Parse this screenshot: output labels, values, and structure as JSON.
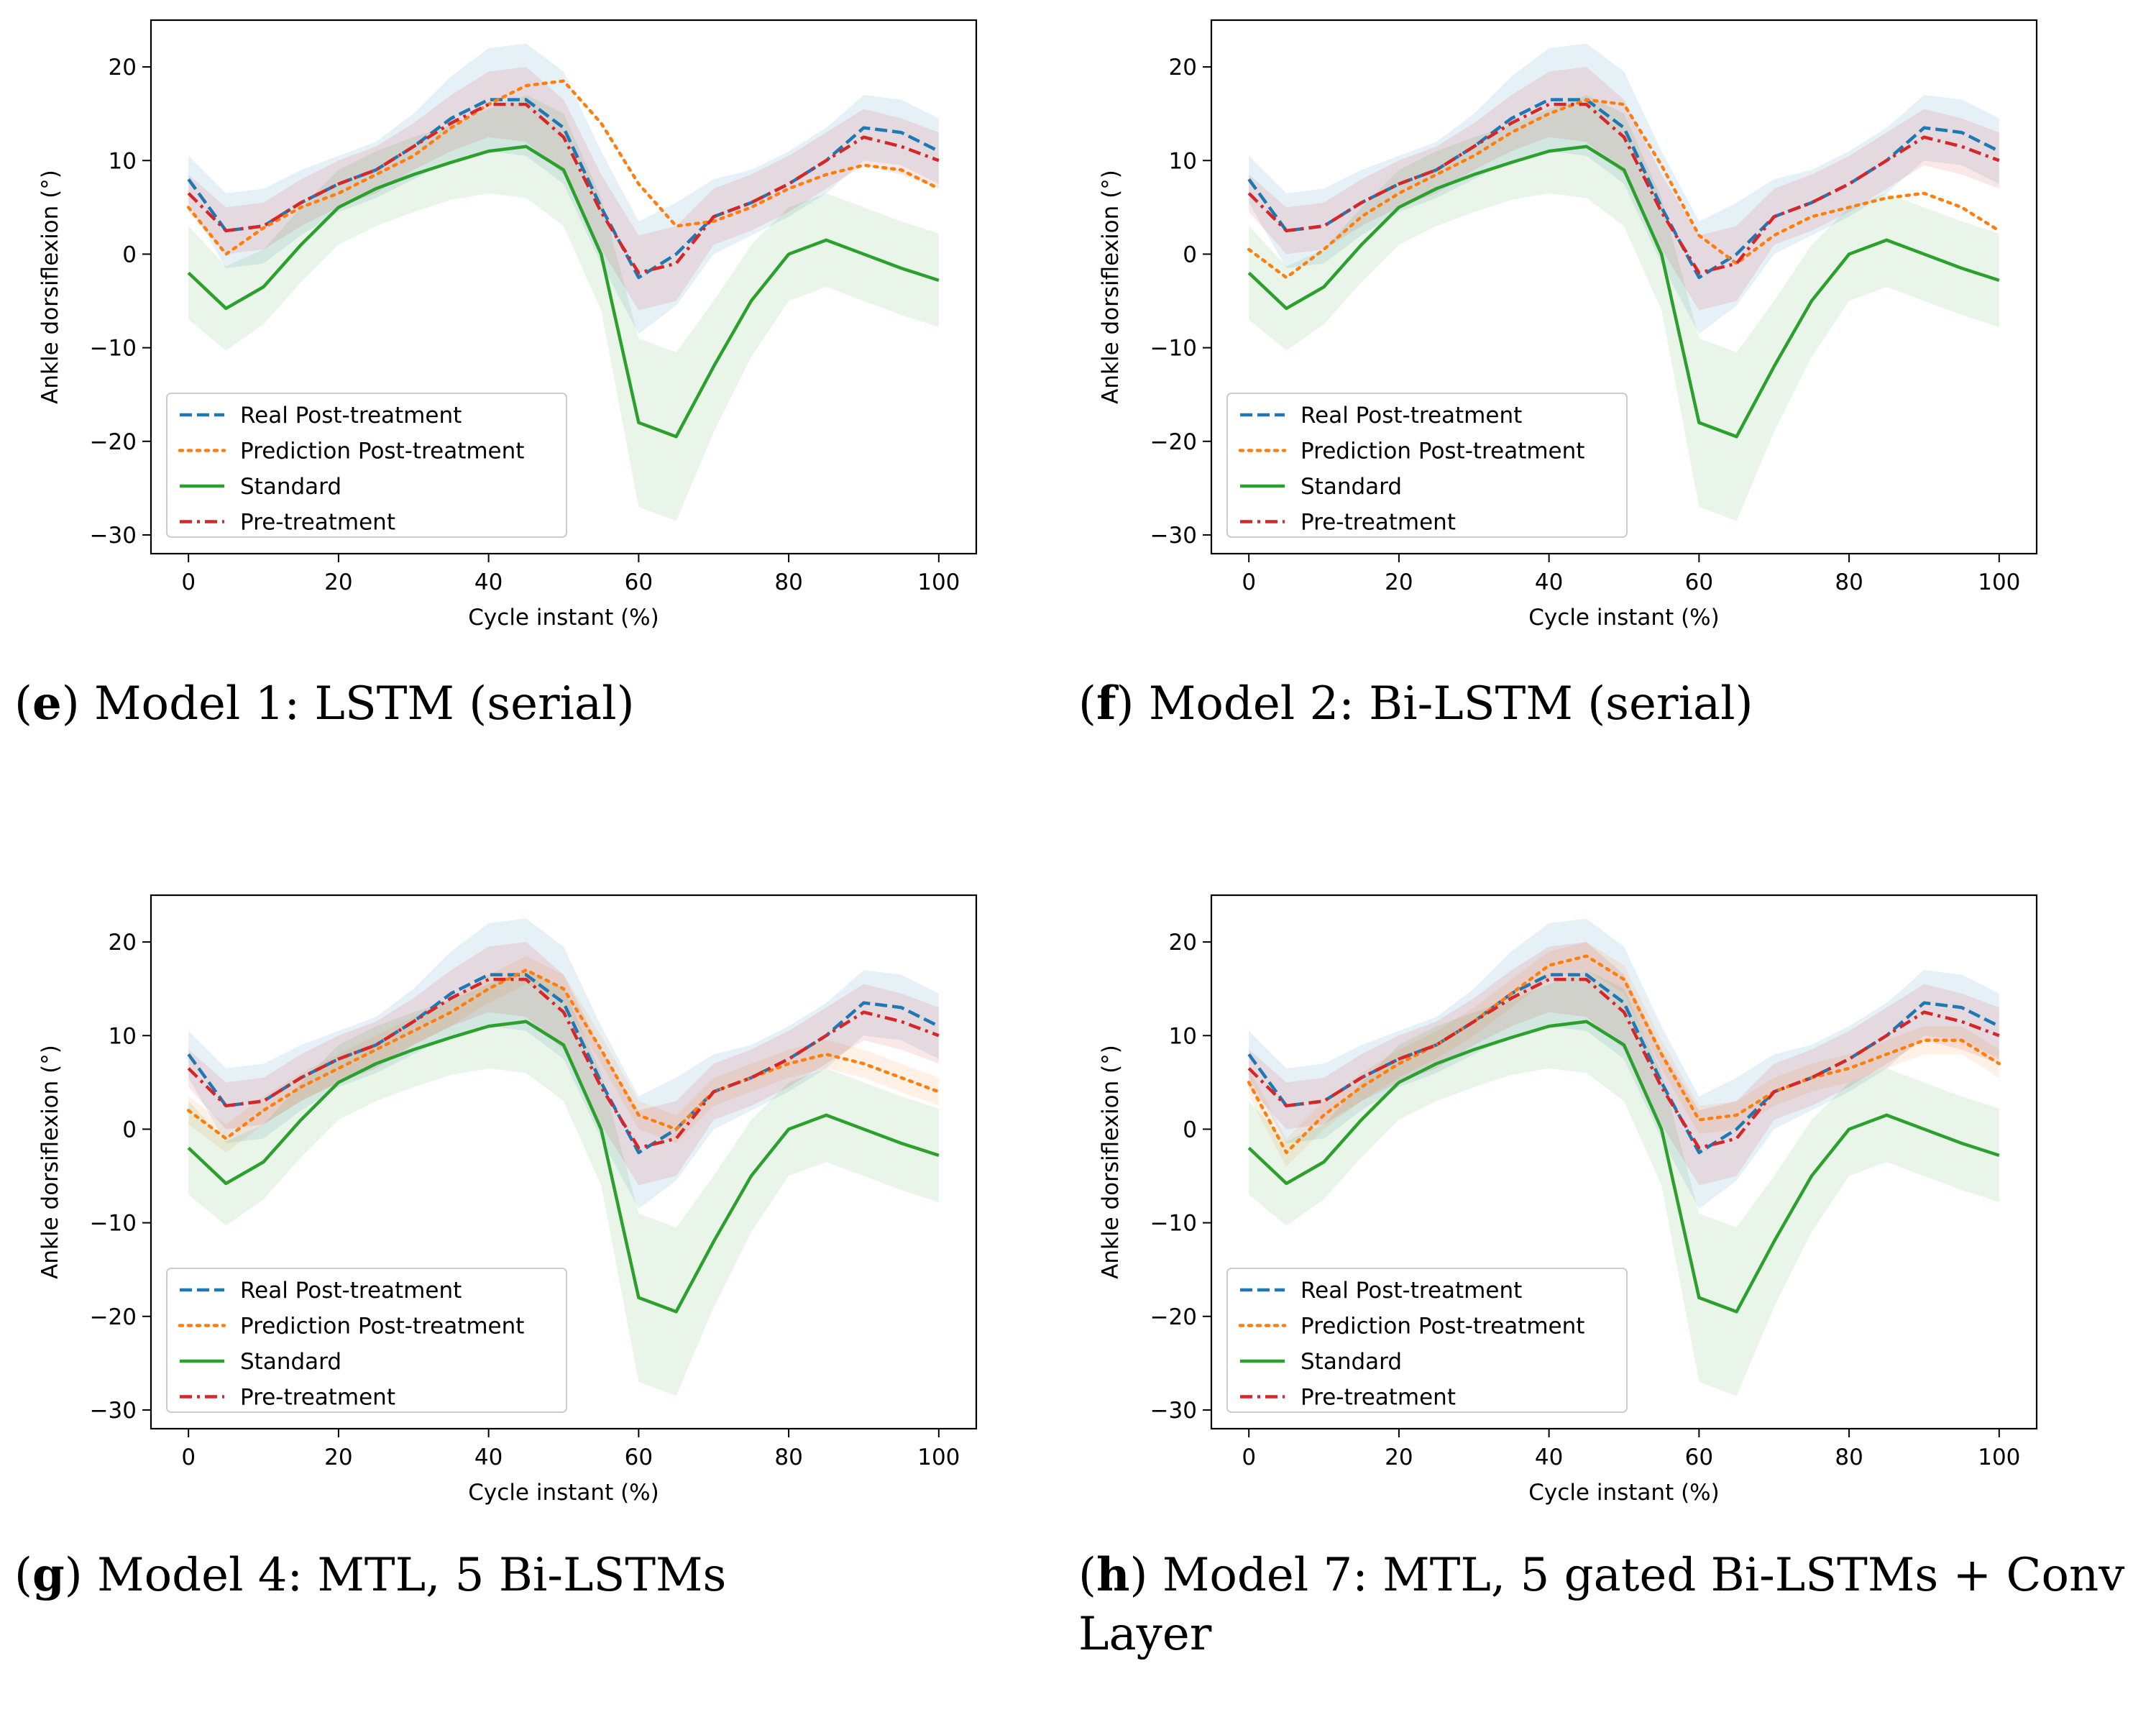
{
  "figure": {
    "legend_labels": [
      "Real Post-treatment",
      "Prediction Post-treatment",
      "Standard",
      "Pre-treatment"
    ],
    "series_colors": {
      "real": "#1f77b4",
      "prediction": "#ff7f0e",
      "standard": "#2ca02c",
      "pre": "#d62728"
    }
  },
  "chart_data": [
    {
      "type": "line",
      "panel_letter": "e",
      "caption": ") Model 1: LSTM (serial)",
      "title": "",
      "xlabel": "Cycle instant (%)",
      "ylabel": "Ankle dorsiflexion (°)",
      "xlim": [
        -5,
        105
      ],
      "ylim": [
        -32,
        25
      ],
      "xticks": [
        "0",
        "20",
        "40",
        "60",
        "80",
        "100"
      ],
      "yticks": [
        "−30",
        "−20",
        "−10",
        "0",
        "10",
        "20"
      ],
      "legend_position": "lower-left",
      "x": [
        0,
        5,
        10,
        15,
        20,
        25,
        30,
        35,
        40,
        45,
        50,
        55,
        60,
        65,
        70,
        75,
        80,
        85,
        90,
        95,
        100
      ],
      "series": [
        {
          "name": "Real Post-treatment",
          "style": "dashed",
          "color": "#1f77b4",
          "values": [
            8,
            2.5,
            3,
            5.5,
            7.5,
            9,
            11.5,
            14.5,
            16.5,
            16.5,
            13.5,
            5,
            -2.5,
            0,
            4,
            5.5,
            7.5,
            10,
            13.5,
            13,
            11
          ],
          "band": [
            2.5,
            4,
            4,
            3.5,
            3,
            3,
            3.5,
            4.5,
            5.5,
            6,
            6,
            6,
            6,
            5.5,
            4,
            3.5,
            3.5,
            3.5,
            3.5,
            3.5,
            3.5
          ]
        },
        {
          "name": "Prediction Post-treatment",
          "style": "dotted",
          "color": "#ff7f0e",
          "values": [
            5,
            0,
            2.8,
            5,
            6.5,
            8.5,
            10.5,
            13.5,
            16,
            18,
            18.5,
            14,
            7.5,
            3,
            3.5,
            5,
            7,
            8.5,
            9.5,
            9,
            7
          ],
          "band": null
        },
        {
          "name": "Standard",
          "style": "solid",
          "color": "#2ca02c",
          "values": [
            -2,
            -5.8,
            -3.5,
            1,
            5,
            7,
            8.5,
            9.8,
            11,
            11.5,
            9,
            0,
            -18,
            -19.5,
            -12,
            -5,
            0,
            1.5,
            0,
            -1.5,
            -2.8
          ],
          "band": [
            5,
            4.5,
            4,
            4,
            4,
            4,
            4,
            4,
            4.5,
            5.5,
            6,
            6,
            9,
            9,
            7,
            6,
            5,
            5,
            5,
            5,
            5
          ]
        },
        {
          "name": "Pre-treatment",
          "style": "dashdot",
          "color": "#d62728",
          "values": [
            6.5,
            2.5,
            3,
            5.5,
            7.5,
            9,
            11.5,
            14,
            16,
            16,
            12.5,
            4.5,
            -2,
            -1,
            4,
            5.5,
            7.5,
            10,
            12.5,
            11.5,
            10
          ],
          "band": [
            2,
            2.5,
            2.5,
            2.5,
            2.5,
            2.5,
            2.5,
            3,
            3.5,
            4,
            4,
            4,
            4,
            4,
            3,
            3,
            3,
            3,
            3,
            3,
            3
          ]
        }
      ]
    },
    {
      "type": "line",
      "panel_letter": "f",
      "caption": ") Model 2: Bi-LSTM (serial)",
      "title": "",
      "xlabel": "Cycle instant (%)",
      "ylabel": "Ankle dorsiflexion (°)",
      "xlim": [
        -5,
        105
      ],
      "ylim": [
        -32,
        25
      ],
      "xticks": [
        "0",
        "20",
        "40",
        "60",
        "80",
        "100"
      ],
      "yticks": [
        "−30",
        "−20",
        "−10",
        "0",
        "10",
        "20"
      ],
      "legend_position": "lower-left",
      "x": [
        0,
        5,
        10,
        15,
        20,
        25,
        30,
        35,
        40,
        45,
        50,
        55,
        60,
        65,
        70,
        75,
        80,
        85,
        90,
        95,
        100
      ],
      "series": [
        {
          "name": "Real Post-treatment",
          "style": "dashed",
          "color": "#1f77b4",
          "values": [
            8,
            2.5,
            3,
            5.5,
            7.5,
            9,
            11.5,
            14.5,
            16.5,
            16.5,
            13.5,
            5,
            -2.5,
            0,
            4,
            5.5,
            7.5,
            10,
            13.5,
            13,
            11
          ],
          "band": [
            2.5,
            4,
            4,
            3.5,
            3,
            3,
            3.5,
            4.5,
            5.5,
            6,
            6,
            6,
            6,
            5.5,
            4,
            3.5,
            3.5,
            3.5,
            3.5,
            3.5,
            3.5
          ]
        },
        {
          "name": "Prediction Post-treatment",
          "style": "dotted",
          "color": "#ff7f0e",
          "values": [
            0.5,
            -2.5,
            0.5,
            4,
            6.5,
            8.5,
            10.5,
            13,
            15,
            16.5,
            16,
            9.5,
            2,
            -1,
            2,
            4,
            5,
            6,
            6.5,
            5,
            2.5
          ],
          "band": null
        },
        {
          "name": "Standard",
          "style": "solid",
          "color": "#2ca02c",
          "values": [
            -2,
            -5.8,
            -3.5,
            1,
            5,
            7,
            8.5,
            9.8,
            11,
            11.5,
            9,
            0,
            -18,
            -19.5,
            -12,
            -5,
            0,
            1.5,
            0,
            -1.5,
            -2.8
          ],
          "band": [
            5,
            4.5,
            4,
            4,
            4,
            4,
            4,
            4,
            4.5,
            5.5,
            6,
            6,
            9,
            9,
            7,
            6,
            5,
            5,
            5,
            5,
            5
          ]
        },
        {
          "name": "Pre-treatment",
          "style": "dashdot",
          "color": "#d62728",
          "values": [
            6.5,
            2.5,
            3,
            5.5,
            7.5,
            9,
            11.5,
            14,
            16,
            16,
            12.5,
            4.5,
            -2,
            -1,
            4,
            5.5,
            7.5,
            10,
            12.5,
            11.5,
            10
          ],
          "band": [
            2,
            2.5,
            2.5,
            2.5,
            2.5,
            2.5,
            2.5,
            3,
            3.5,
            4,
            4,
            4,
            4,
            4,
            3,
            3,
            3,
            3,
            3,
            3,
            3
          ]
        }
      ]
    },
    {
      "type": "line",
      "panel_letter": "g",
      "caption": ") Model 4: MTL, 5 Bi-LSTMs",
      "title": "",
      "xlabel": "Cycle instant (%)",
      "ylabel": "Ankle dorsiflexion (°)",
      "xlim": [
        -5,
        105
      ],
      "ylim": [
        -32,
        25
      ],
      "xticks": [
        "0",
        "20",
        "40",
        "60",
        "80",
        "100"
      ],
      "yticks": [
        "−30",
        "−20",
        "−10",
        "0",
        "10",
        "20"
      ],
      "legend_position": "lower-left",
      "x": [
        0,
        5,
        10,
        15,
        20,
        25,
        30,
        35,
        40,
        45,
        50,
        55,
        60,
        65,
        70,
        75,
        80,
        85,
        90,
        95,
        100
      ],
      "series": [
        {
          "name": "Real Post-treatment",
          "style": "dashed",
          "color": "#1f77b4",
          "values": [
            8,
            2.5,
            3,
            5.5,
            7.5,
            9,
            11.5,
            14.5,
            16.5,
            16.5,
            13.5,
            5,
            -2.5,
            0,
            4,
            5.5,
            7.5,
            10,
            13.5,
            13,
            11
          ],
          "band": [
            2.5,
            4,
            4,
            3.5,
            3,
            3,
            3.5,
            4.5,
            5.5,
            6,
            6,
            6,
            6,
            5.5,
            4,
            3.5,
            3.5,
            3.5,
            3.5,
            3.5,
            3.5
          ]
        },
        {
          "name": "Prediction Post-treatment",
          "style": "dotted",
          "color": "#ff7f0e",
          "values": [
            2,
            -1,
            2,
            4.5,
            6.5,
            8.5,
            10.5,
            12.5,
            15,
            17,
            15,
            8.5,
            1.5,
            0,
            4,
            5.5,
            7,
            8,
            7,
            5.5,
            4
          ],
          "band": [
            1.5,
            1.5,
            1.5,
            1.5,
            1.5,
            1.5,
            1.5,
            1.5,
            1.5,
            1.5,
            1.5,
            1.5,
            1.5,
            1.5,
            1.5,
            1.5,
            1.5,
            1.5,
            1.5,
            1.5,
            1.5
          ]
        },
        {
          "name": "Standard",
          "style": "solid",
          "color": "#2ca02c",
          "values": [
            -2,
            -5.8,
            -3.5,
            1,
            5,
            7,
            8.5,
            9.8,
            11,
            11.5,
            9,
            0,
            -18,
            -19.5,
            -12,
            -5,
            0,
            1.5,
            0,
            -1.5,
            -2.8
          ],
          "band": [
            5,
            4.5,
            4,
            4,
            4,
            4,
            4,
            4,
            4.5,
            5.5,
            6,
            6,
            9,
            9,
            7,
            6,
            5,
            5,
            5,
            5,
            5
          ]
        },
        {
          "name": "Pre-treatment",
          "style": "dashdot",
          "color": "#d62728",
          "values": [
            6.5,
            2.5,
            3,
            5.5,
            7.5,
            9,
            11.5,
            14,
            16,
            16,
            12.5,
            4.5,
            -2,
            -1,
            4,
            5.5,
            7.5,
            10,
            12.5,
            11.5,
            10
          ],
          "band": [
            2,
            2.5,
            2.5,
            2.5,
            2.5,
            2.5,
            2.5,
            3,
            3.5,
            4,
            4,
            4,
            4,
            4,
            3,
            3,
            3,
            3,
            3,
            3,
            3
          ]
        }
      ]
    },
    {
      "type": "line",
      "panel_letter": "h",
      "caption": ") Model 7: MTL, 5 gated Bi-LSTMs + Conv Layer",
      "title": "",
      "xlabel": "Cycle instant (%)",
      "ylabel": "Ankle dorsiflexion (°)",
      "xlim": [
        -5,
        105
      ],
      "ylim": [
        -32,
        25
      ],
      "xticks": [
        "0",
        "20",
        "40",
        "60",
        "80",
        "100"
      ],
      "yticks": [
        "−30",
        "−20",
        "−10",
        "0",
        "10",
        "20"
      ],
      "legend_position": "lower-left",
      "x": [
        0,
        5,
        10,
        15,
        20,
        25,
        30,
        35,
        40,
        45,
        50,
        55,
        60,
        65,
        70,
        75,
        80,
        85,
        90,
        95,
        100
      ],
      "series": [
        {
          "name": "Real Post-treatment",
          "style": "dashed",
          "color": "#1f77b4",
          "values": [
            8,
            2.5,
            3,
            5.5,
            7.5,
            9,
            11.5,
            14.5,
            16.5,
            16.5,
            13.5,
            5,
            -2.5,
            0,
            4,
            5.5,
            7.5,
            10,
            13.5,
            13,
            11
          ],
          "band": [
            2.5,
            4,
            4,
            3.5,
            3,
            3,
            3.5,
            4.5,
            5.5,
            6,
            6,
            6,
            6,
            5.5,
            4,
            3.5,
            3.5,
            3.5,
            3.5,
            3.5,
            3.5
          ]
        },
        {
          "name": "Prediction Post-treatment",
          "style": "dotted",
          "color": "#ff7f0e",
          "values": [
            5,
            -2.5,
            1.5,
            4.5,
            7,
            9,
            11.5,
            14.5,
            17.5,
            18.5,
            16,
            8,
            1,
            1.5,
            4,
            5.5,
            6.5,
            8,
            9.5,
            9.5,
            7
          ],
          "band": [
            1.5,
            1.5,
            1.5,
            1.5,
            1.5,
            1.5,
            1.5,
            1.5,
            1.5,
            1.5,
            1.5,
            1.5,
            1.5,
            1.5,
            1.5,
            1.5,
            1.5,
            1.5,
            1.5,
            1.5,
            1.5
          ]
        },
        {
          "name": "Standard",
          "style": "solid",
          "color": "#2ca02c",
          "values": [
            -2,
            -5.8,
            -3.5,
            1,
            5,
            7,
            8.5,
            9.8,
            11,
            11.5,
            9,
            0,
            -18,
            -19.5,
            -12,
            -5,
            0,
            1.5,
            0,
            -1.5,
            -2.8
          ],
          "band": [
            5,
            4.5,
            4,
            4,
            4,
            4,
            4,
            4,
            4.5,
            5.5,
            6,
            6,
            9,
            9,
            7,
            6,
            5,
            5,
            5,
            5,
            5
          ]
        },
        {
          "name": "Pre-treatment",
          "style": "dashdot",
          "color": "#d62728",
          "values": [
            6.5,
            2.5,
            3,
            5.5,
            7.5,
            9,
            11.5,
            14,
            16,
            16,
            12.5,
            4.5,
            -2,
            -1,
            4,
            5.5,
            7.5,
            10,
            12.5,
            11.5,
            10
          ],
          "band": [
            2,
            2.5,
            2.5,
            2.5,
            2.5,
            2.5,
            2.5,
            3,
            3.5,
            4,
            4,
            4,
            4,
            4,
            3,
            3,
            3,
            3,
            3,
            3,
            3
          ]
        }
      ]
    }
  ]
}
